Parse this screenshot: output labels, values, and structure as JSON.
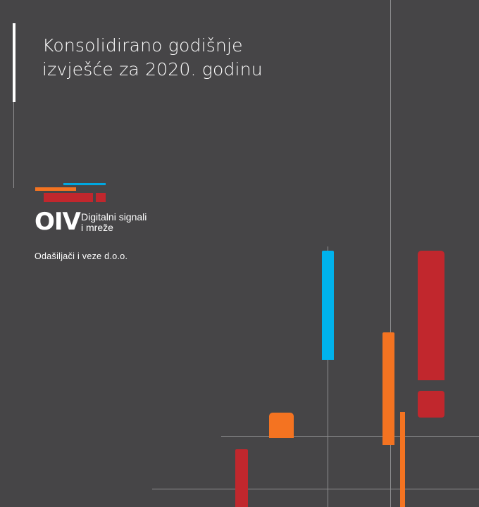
{
  "cover": {
    "title_line1": "Konsolidirano godišnje",
    "title_line2": "izvješće za 2020. godinu"
  },
  "logo": {
    "mark": "OIV",
    "subtitle_line1": "Digitalni signali",
    "subtitle_line2": "i mreže"
  },
  "company": "Odašiljači i veze d.o.o.",
  "colors": {
    "background": "#464547",
    "accent_blue": "#00b2ec",
    "accent_orange": "#f47321",
    "accent_red": "#c1272d",
    "line_grey": "#8f8f91",
    "text": "#ffffff"
  }
}
